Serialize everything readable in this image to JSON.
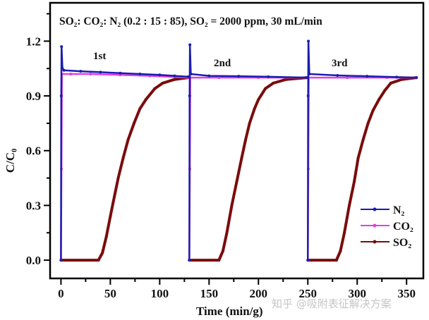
{
  "chart_data": {
    "type": "line",
    "title": "SO₂: CO₂: N₂ (0.2 : 15 : 85), SO₂ = 2000 ppm, 30 mL/min",
    "xlabel": "Time (min/g)",
    "ylabel": "C/C₀",
    "xlim": [
      -11,
      367
    ],
    "ylim": [
      -0.1,
      1.41
    ],
    "xticks": [
      "0",
      "50",
      "100",
      "150",
      "200",
      "250",
      "300",
      "350"
    ],
    "yticks": [
      "0.0",
      "0.3",
      "0.6",
      "0.9",
      "1.2"
    ],
    "grid": false,
    "legend_position": "bottom-right",
    "annotations": [
      "1st",
      "2nd",
      "3rd"
    ],
    "series": [
      {
        "name": "N₂",
        "color": "#1c1cb0",
        "cycles": [
          [
            [
              0,
              0
            ],
            [
              0.3,
              0.9
            ],
            [
              0.6,
              1.17
            ],
            [
              1.5,
              1.05
            ],
            [
              3,
              1.04
            ],
            [
              20,
              1.035
            ],
            [
              40,
              1.03
            ],
            [
              60,
              1.025
            ],
            [
              80,
              1.02
            ],
            [
              100,
              1.015
            ],
            [
              115,
              1.01
            ],
            [
              129,
              1.005
            ]
          ],
          [
            [
              130,
              0
            ],
            [
              130.3,
              0.9
            ],
            [
              130.6,
              1.18
            ],
            [
              131.5,
              1.02
            ],
            [
              150,
              1.01
            ],
            [
              180,
              1.008
            ],
            [
              210,
              1.005
            ],
            [
              249,
              1.0
            ]
          ],
          [
            [
              250,
              0
            ],
            [
              250.3,
              0.9
            ],
            [
              250.6,
              1.2
            ],
            [
              251.5,
              1.02
            ],
            [
              280,
              1.012
            ],
            [
              310,
              1.008
            ],
            [
              340,
              1.003
            ],
            [
              360,
              1.0
            ]
          ]
        ]
      },
      {
        "name": "CO₂",
        "color": "#e040e0",
        "cycles": [
          [
            [
              0,
              0
            ],
            [
              0.5,
              0.5
            ],
            [
              1,
              1.02
            ],
            [
              10,
              1.02
            ],
            [
              30,
              1.02
            ],
            [
              60,
              1.015
            ],
            [
              90,
              1.01
            ],
            [
              129,
              1.0
            ]
          ],
          [
            [
              130,
              0
            ],
            [
              130.5,
              0.5
            ],
            [
              131,
              1.0
            ],
            [
              160,
              1.0
            ],
            [
              200,
              1.0
            ],
            [
              249,
              1.0
            ]
          ],
          [
            [
              250,
              0
            ],
            [
              250.5,
              0.5
            ],
            [
              251,
              1.0
            ],
            [
              290,
              1.0
            ],
            [
              330,
              1.0
            ],
            [
              360,
              1.0
            ]
          ]
        ]
      },
      {
        "name": "SO₂",
        "color": "#7a0c0c",
        "cycles": [
          [
            [
              0,
              0
            ],
            [
              38,
              0
            ],
            [
              42,
              0.04
            ],
            [
              46,
              0.13
            ],
            [
              50,
              0.24
            ],
            [
              53,
              0.32
            ],
            [
              58,
              0.45
            ],
            [
              63,
              0.56
            ],
            [
              68,
              0.66
            ],
            [
              74,
              0.75
            ],
            [
              80,
              0.83
            ],
            [
              86,
              0.88
            ],
            [
              95,
              0.94
            ],
            [
              103,
              0.97
            ],
            [
              115,
              0.99
            ],
            [
              129,
              1.0
            ]
          ],
          [
            [
              130,
              0
            ],
            [
              160,
              0
            ],
            [
              164,
              0.05
            ],
            [
              168,
              0.15
            ],
            [
              173,
              0.3
            ],
            [
              178,
              0.43
            ],
            [
              183,
              0.56
            ],
            [
              187,
              0.66
            ],
            [
              191,
              0.75
            ],
            [
              196,
              0.83
            ],
            [
              200,
              0.88
            ],
            [
              207,
              0.94
            ],
            [
              215,
              0.97
            ],
            [
              228,
              0.99
            ],
            [
              249,
              1.0
            ]
          ],
          [
            [
              250,
              0
            ],
            [
              279,
              0
            ],
            [
              283,
              0.05
            ],
            [
              287,
              0.15
            ],
            [
              292,
              0.3
            ],
            [
              297,
              0.43
            ],
            [
              301,
              0.56
            ],
            [
              306,
              0.66
            ],
            [
              311,
              0.75
            ],
            [
              316,
              0.82
            ],
            [
              322,
              0.88
            ],
            [
              328,
              0.93
            ],
            [
              334,
              0.97
            ],
            [
              345,
              0.99
            ],
            [
              360,
              1.0
            ]
          ]
        ]
      }
    ]
  },
  "watermark": "知乎 @吸附表征解决方案"
}
